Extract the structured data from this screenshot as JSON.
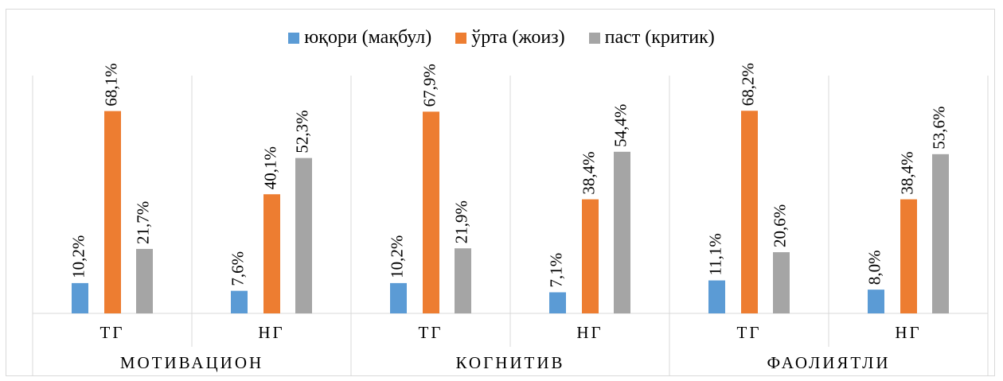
{
  "chart_data": {
    "type": "bar",
    "groups": [
      "МОТИВАЦИОН",
      "КОГНИТИВ",
      "ФАОЛИЯТЛИ"
    ],
    "categories": [
      "ТГ",
      "НГ",
      "ТГ",
      "НГ",
      "ТГ",
      "НГ"
    ],
    "series": [
      {
        "name": "юқори (мақбул)",
        "color": "#5b9bd5",
        "values": [
          10.2,
          7.6,
          10.2,
          7.1,
          11.1,
          8.0
        ],
        "labels": [
          "10,2%",
          "7,6%",
          "10,2%",
          "7,1%",
          "11,1%",
          "8,0%"
        ]
      },
      {
        "name": "ўрта (жоиз)",
        "color": "#ed7d31",
        "values": [
          68.1,
          40.1,
          67.9,
          38.4,
          68.2,
          38.4
        ],
        "labels": [
          "68,1%",
          "40,1%",
          "67,9%",
          "38,4%",
          "68,2%",
          "38,4%"
        ]
      },
      {
        "name": "паст (критик)",
        "color": "#a5a5a5",
        "values": [
          21.7,
          52.3,
          21.9,
          54.4,
          20.6,
          53.6
        ],
        "labels": [
          "21,7%",
          "52,3%",
          "21,9%",
          "54,4%",
          "20,6%",
          "53,6%"
        ]
      }
    ],
    "ylim": [
      0,
      80
    ],
    "legend": "top",
    "grid": false
  }
}
